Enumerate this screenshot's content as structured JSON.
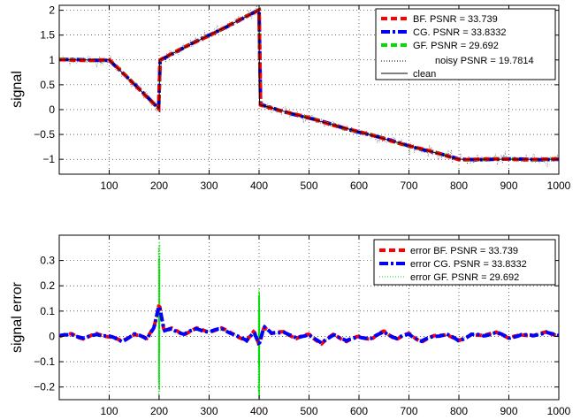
{
  "chart_data": [
    {
      "type": "line",
      "ylabel": "signal",
      "xlim": [
        0,
        1000
      ],
      "ylim": [
        -1.3,
        2.1
      ],
      "xticks": [
        100,
        200,
        300,
        400,
        500,
        600,
        700,
        800,
        900,
        1000
      ],
      "yticks": [
        -1,
        -0.5,
        0,
        0.5,
        1,
        1.5,
        2
      ],
      "ytick_labels": [
        "−1",
        "−0.5",
        "0",
        "0.5",
        "1",
        "1.5",
        "2"
      ],
      "grid": true,
      "legend_position": "top-right",
      "series": [
        {
          "name": "BF.  PSNR = 33.739",
          "color": "#ff0000",
          "style": "dashed"
        },
        {
          "name": "CG.  PSNR = 33.8332",
          "color": "#0000ff",
          "style": "dashdot"
        },
        {
          "name": "GF.  PSNR = 29.692",
          "color": "#00dd00",
          "style": "dashed"
        },
        {
          "name": "noisy PSNR = 19.7814",
          "color": "#000000",
          "style": "dotted"
        },
        {
          "name": "clean",
          "color": "#000000",
          "style": "solid"
        }
      ],
      "clean_signal": {
        "x": [
          1,
          100,
          200,
          201,
          400,
          401,
          800,
          1000
        ],
        "y": [
          1,
          1,
          0.02,
          1,
          2,
          0.1,
          -1,
          -1
        ]
      }
    },
    {
      "type": "line",
      "ylabel": "signal error",
      "xlim": [
        0,
        1000
      ],
      "ylim": [
        -0.25,
        0.4
      ],
      "xticks": [
        100,
        200,
        300,
        400,
        500,
        600,
        700,
        800,
        900,
        1000
      ],
      "yticks": [
        -0.2,
        -0.1,
        0,
        0.1,
        0.2,
        0.3
      ],
      "ytick_labels": [
        "−0.2",
        "−0.1",
        "0",
        "0.1",
        "0.2",
        "0.3"
      ],
      "grid": true,
      "legend_position": "top-right",
      "series": [
        {
          "name": "error BF. PSNR = 33.739",
          "color": "#ff0000",
          "style": "dashed"
        },
        {
          "name": "error CG. PSNR = 33.8332",
          "color": "#0000ff",
          "style": "dashdot"
        },
        {
          "name": "error GF. PSNR = 29.692",
          "color": "#00dd00",
          "style": "dotted"
        }
      ],
      "error_envelope": {
        "x": [
          1,
          25,
          50,
          75,
          100,
          125,
          150,
          175,
          190,
          200,
          210,
          225,
          250,
          275,
          300,
          325,
          350,
          375,
          390,
          400,
          410,
          425,
          450,
          475,
          500,
          525,
          550,
          575,
          600,
          625,
          650,
          675,
          700,
          725,
          750,
          775,
          800,
          825,
          850,
          875,
          900,
          925,
          950,
          975,
          1000
        ],
        "y": [
          0,
          0.01,
          -0.01,
          0.01,
          0,
          -0.02,
          0.01,
          -0.01,
          0.04,
          0.13,
          0.02,
          0.03,
          0.01,
          0.03,
          0.02,
          0.03,
          0.01,
          -0.02,
          0.02,
          -0.03,
          0.04,
          0.01,
          0.02,
          -0.01,
          0.01,
          -0.03,
          0.01,
          -0.02,
          0,
          -0.01,
          0.02,
          -0.01,
          0.01,
          -0.02,
          0,
          0.01,
          -0.02,
          0.01,
          0,
          0.02,
          -0.01,
          0.01,
          0,
          0.02,
          0
        ]
      },
      "gf_spikes": [
        {
          "x": 200,
          "ymin": -0.25,
          "ymax": 0.4
        },
        {
          "x": 400,
          "ymin": -0.25,
          "ymax": 0.2
        }
      ]
    }
  ]
}
